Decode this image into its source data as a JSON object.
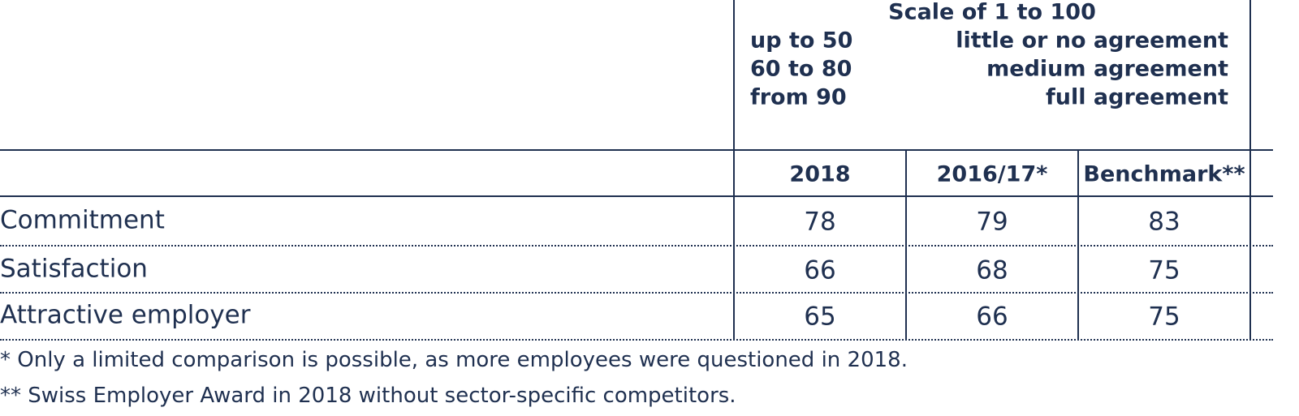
{
  "scale": {
    "title": "Scale of 1 to 100",
    "items": [
      {
        "range": "up to 50",
        "meaning": "little or no agreement"
      },
      {
        "range": "60 to 80",
        "meaning": "medium agreement"
      },
      {
        "range": "from 90",
        "meaning": "full agreement"
      }
    ]
  },
  "table": {
    "columns": [
      "2018",
      "2016/17*",
      "Benchmark**"
    ],
    "rows": [
      [
        "Commitment",
        78,
        79,
        83
      ],
      [
        "Satisfaction",
        66,
        68,
        75
      ],
      [
        "Attractive employer",
        65,
        66,
        75
      ]
    ]
  },
  "footnotes": [
    "* Only a limited comparison is possible, as more employees were questioned in 2018.",
    "** Swiss Employer Award in 2018 without sector-specific competitors."
  ]
}
